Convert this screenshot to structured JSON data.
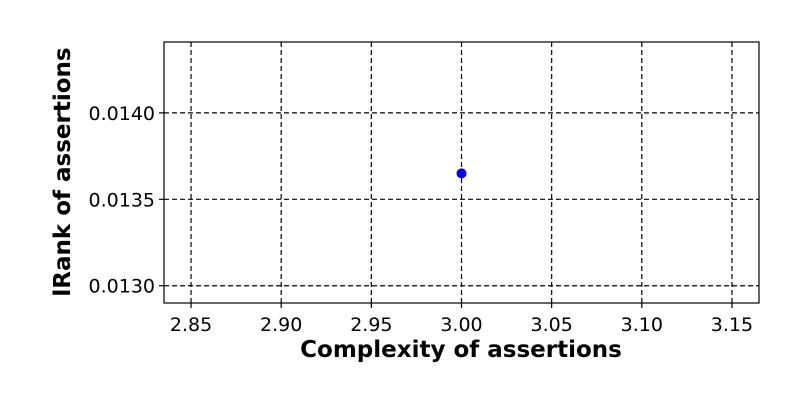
{
  "chart_data": {
    "type": "scatter",
    "xlabel": "Complexity of assertions",
    "ylabel": "lRank of assertions",
    "xlim": [
      2.835,
      3.165
    ],
    "ylim": [
      0.0129,
      0.01441
    ],
    "x_ticks": [
      2.85,
      2.9,
      2.95,
      3.0,
      3.05,
      3.1,
      3.15
    ],
    "x_tick_labels": [
      "2.85",
      "2.90",
      "2.95",
      "3.00",
      "3.05",
      "3.10",
      "3.15"
    ],
    "y_ticks": [
      0.013,
      0.0135,
      0.014
    ],
    "y_tick_labels": [
      "0.0130",
      "0.0135",
      "0.0140"
    ],
    "grid": true,
    "grid_style": "dashed",
    "series": [
      {
        "x": [
          3.0
        ],
        "y": [
          0.01365
        ],
        "color": "#0000ff",
        "marker": "circle"
      }
    ]
  }
}
